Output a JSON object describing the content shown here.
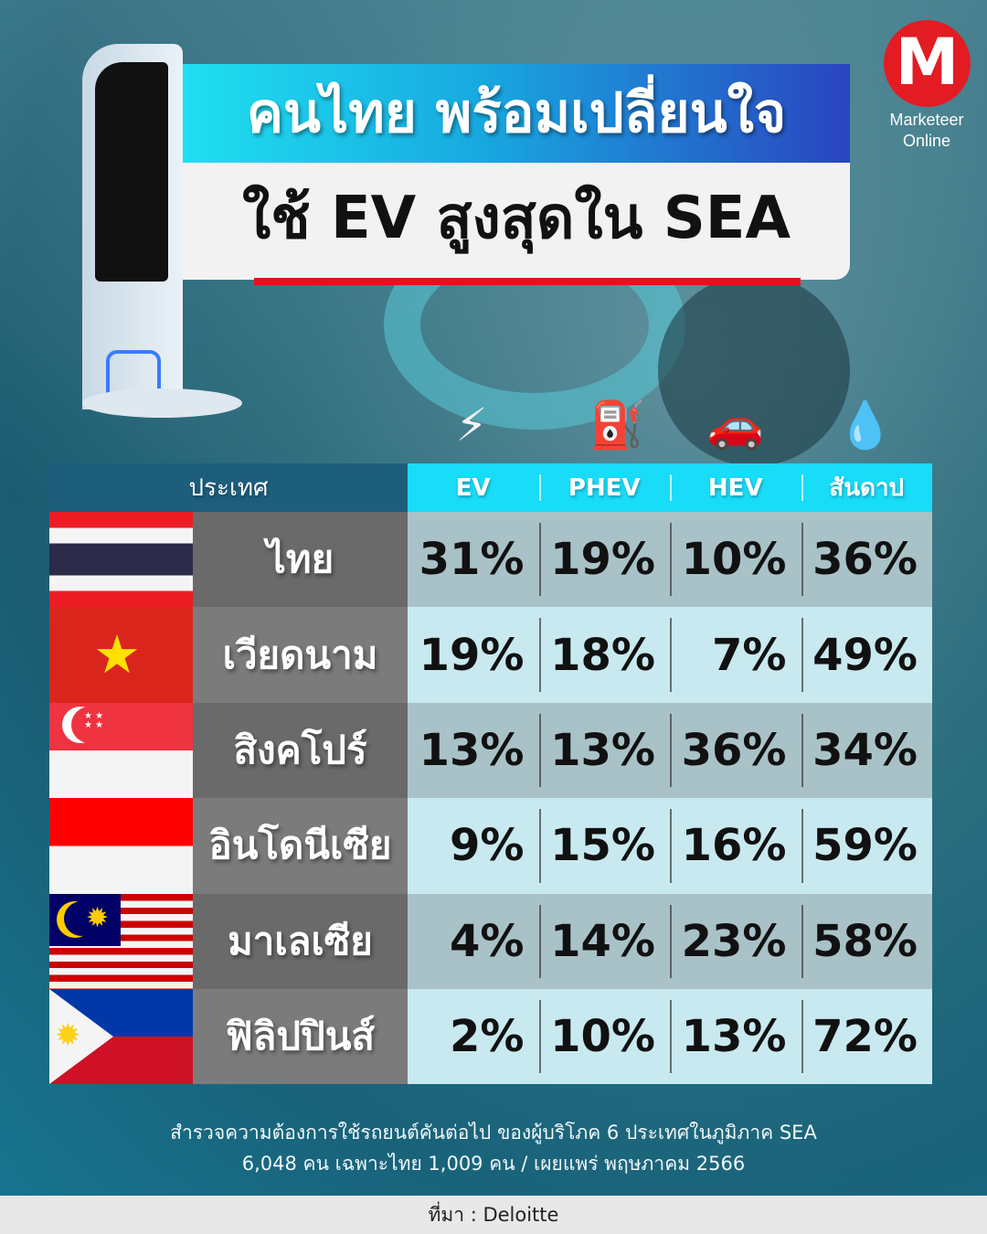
{
  "title": {
    "line1": "คนไทย พร้อมเปลี่ยนใจ",
    "line2": "ใช้ EV สูงสุดใน SEA"
  },
  "logo": {
    "letter": "M",
    "line1": "Marketeer",
    "line2": "Online"
  },
  "icons": [
    "ev-charger-plug-icon",
    "phev-fuel-charge-icon",
    "hev-car-plug-icon",
    "fuel-nozzle-icon"
  ],
  "colors": {
    "accent": "#19dcf8",
    "header_dark": "#1d5e7c",
    "red": "#e0141c"
  },
  "chart_data": {
    "type": "table",
    "columns": [
      "ประเทศ",
      "EV",
      "PHEV",
      "HEV",
      "สันดาป"
    ],
    "rows": [
      {
        "country": "ไทย",
        "flag": "thailand",
        "values": [
          "31%",
          "19%",
          "10%",
          "36%"
        ]
      },
      {
        "country": "เวียดนาม",
        "flag": "vietnam",
        "values": [
          "19%",
          "18%",
          "7%",
          "49%"
        ]
      },
      {
        "country": "สิงคโปร์",
        "flag": "singapore",
        "values": [
          "13%",
          "13%",
          "36%",
          "34%"
        ]
      },
      {
        "country": "อินโดนีเซีย",
        "flag": "indonesia",
        "values": [
          "9%",
          "15%",
          "16%",
          "59%"
        ]
      },
      {
        "country": "มาเลเซีย",
        "flag": "malaysia",
        "values": [
          "4%",
          "14%",
          "23%",
          "58%"
        ]
      },
      {
        "country": "ฟิลิปปินส์",
        "flag": "philippines",
        "values": [
          "2%",
          "10%",
          "13%",
          "72%"
        ]
      }
    ]
  },
  "note": {
    "line1": "สำรวจความต้องการใช้รถยนต์คันต่อไป ของผู้บริโภค 6 ประเทศในภูมิภาค SEA",
    "line2": "6,048 คน เฉพาะไทย 1,009 คน / เผยแพร่ พฤษภาคม 2566"
  },
  "source": "ที่มา : Deloitte"
}
